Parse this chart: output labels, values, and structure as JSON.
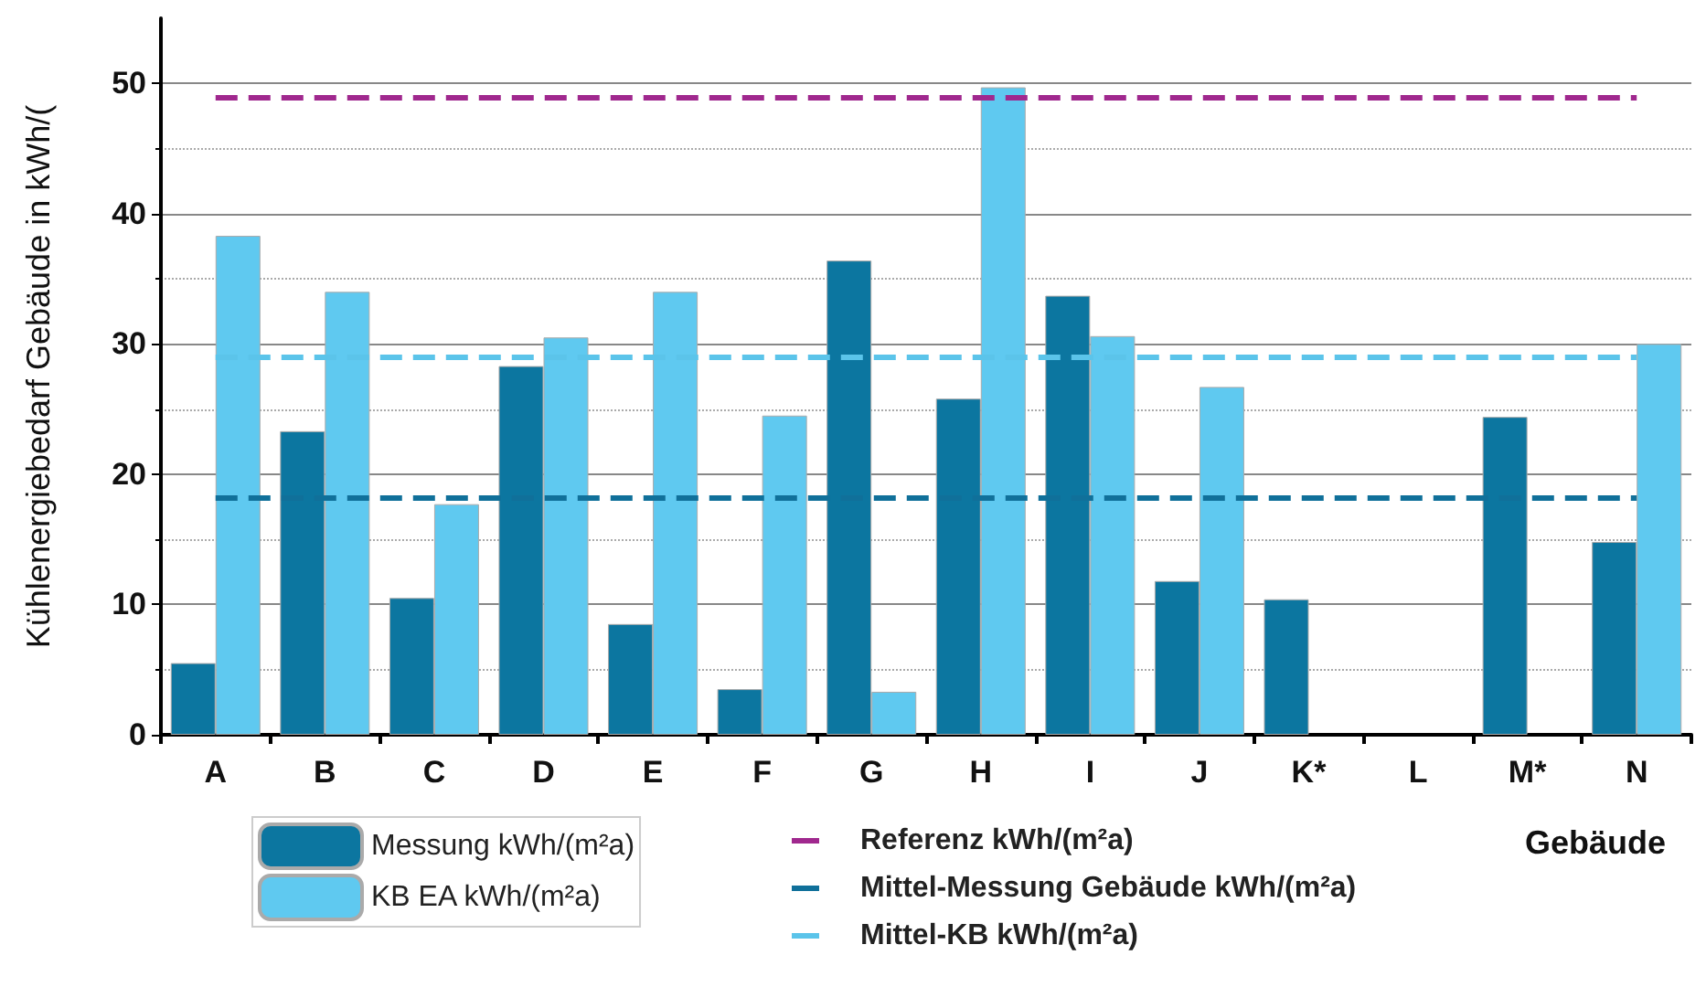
{
  "chart_data": {
    "type": "bar",
    "xlabel": "Gebäude",
    "ylabel": "Kühlenergiebedarf Gebäude in kWh/(",
    "categories": [
      "A",
      "B",
      "C",
      "D",
      "E",
      "F",
      "G",
      "H",
      "I",
      "J",
      "K*",
      "L",
      "M*",
      "N"
    ],
    "series": [
      {
        "name": "Messung kWh/(m²a)",
        "color": "#0c76a0",
        "values": [
          5.5,
          23.3,
          10.5,
          28.3,
          8.5,
          3.5,
          36.4,
          25.8,
          33.7,
          11.8,
          10.4,
          null,
          24.4,
          14.8
        ]
      },
      {
        "name": "KB EA kWh/(m²a)",
        "color": "#5fc9f0",
        "values": [
          38.3,
          34,
          17.7,
          30.5,
          34,
          24.5,
          3.3,
          49.7,
          30.6,
          26.7,
          null,
          null,
          null,
          30
        ]
      }
    ],
    "ylim": [
      0,
      55
    ],
    "yticks": [
      0,
      10,
      20,
      30,
      40,
      50
    ],
    "ref_lines": [
      {
        "axis": "y",
        "value": 49,
        "label": "Referenz kWh/(m²a)",
        "color": "#a0288e",
        "line_style": "dashed"
      },
      {
        "axis": "y",
        "value": 18.2,
        "label": "Mittel-Messung Gebäude kWh/(m²a)",
        "color": "#10709a",
        "line_style": "dashed"
      },
      {
        "axis": "y",
        "value": 29,
        "label": "Mittel-KB kWh/(m²a)",
        "color": "#5bc4ea",
        "line_style": "dashed"
      }
    ],
    "grid": "y",
    "legend": "bottom"
  }
}
